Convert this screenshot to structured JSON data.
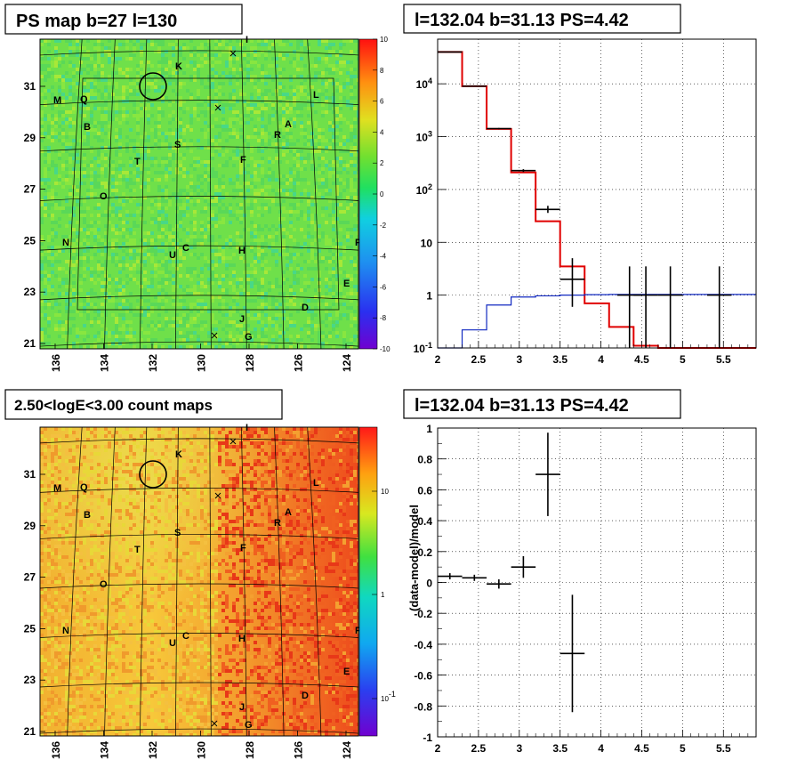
{
  "chart_data": [
    {
      "type": "heatmap",
      "title": "PS map b=27 l=130",
      "x_ticks": [
        "136",
        "134",
        "132",
        "130",
        "128",
        "126",
        "124"
      ],
      "y_ticks": [
        "31",
        "29",
        "27",
        "25",
        "23",
        "21"
      ],
      "colorbar": {
        "ticks": [
          "10",
          "8",
          "6",
          "4",
          "2",
          "0",
          "-2",
          "-4",
          "-6",
          "-8",
          "-10"
        ],
        "range": [
          -10,
          10
        ],
        "scale": "linear"
      },
      "background_value": 0.8,
      "source_labels": [
        "I",
        "K",
        "M",
        "Q",
        "L",
        "B",
        "A",
        "R",
        "S",
        "F",
        "T",
        "O",
        "N",
        "U",
        "C",
        "H",
        "P",
        "E",
        "D",
        "J",
        "G"
      ]
    },
    {
      "type": "line",
      "title": "l=132.04 b=31.13 PS=4.42",
      "x_ticks": [
        "2",
        "2.5",
        "3",
        "3.5",
        "4",
        "4.5",
        "5",
        "5.5"
      ],
      "y_ticks": [
        "10^4",
        "10^3",
        "10^2",
        "10",
        "1",
        "10^-1"
      ],
      "xlim": [
        2.0,
        5.9
      ],
      "ylim": [
        0.1,
        70000
      ],
      "y_scale": "log",
      "grid": true,
      "bin_edges": [
        2.0,
        2.3,
        2.6,
        2.9,
        3.2,
        3.5,
        3.8,
        4.1,
        4.4,
        4.7,
        5.0,
        5.3,
        5.6,
        5.9
      ],
      "series": [
        {
          "values": [
            40000,
            9000,
            1400,
            210,
            25,
            3.5,
            0.7,
            0.25,
            0.11,
            0.1,
            0.1,
            0.1,
            0.1
          ],
          "color": "#e00000"
        },
        {
          "values": [
            0.06,
            0.22,
            0.65,
            0.92,
            0.97,
            1.0,
            1.02,
            1.03,
            1.03,
            1.03,
            1.03,
            1.03,
            1.03
          ],
          "color": "#1028c0"
        }
      ],
      "data_points": [
        {
          "x": 2.15,
          "y": 40000,
          "xerr": 0.15,
          "ylo": 39800,
          "yhi": 40200
        },
        {
          "x": 2.45,
          "y": 9000,
          "xerr": 0.15,
          "ylo": 8900,
          "yhi": 9100
        },
        {
          "x": 2.75,
          "y": 1420,
          "xerr": 0.15,
          "ylo": 1380,
          "yhi": 1460
        },
        {
          "x": 3.05,
          "y": 228,
          "xerr": 0.15,
          "ylo": 214,
          "yhi": 242
        },
        {
          "x": 3.35,
          "y": 42,
          "xerr": 0.15,
          "ylo": 36,
          "yhi": 49
        },
        {
          "x": 3.65,
          "y": 2.0,
          "xerr": 0.15,
          "ylo": 0.6,
          "yhi": 5.0
        },
        {
          "x": 4.35,
          "y": 1.0,
          "xerr": 0.15,
          "ylo": 0.1,
          "yhi": 3.5
        },
        {
          "x": 4.55,
          "y": 1.0,
          "xerr": 0.15,
          "ylo": 0.1,
          "yhi": 3.5
        },
        {
          "x": 4.85,
          "y": 1.0,
          "xerr": 0.15,
          "ylo": 0.1,
          "yhi": 3.5
        },
        {
          "x": 5.45,
          "y": 1.0,
          "xerr": 0.15,
          "ylo": 0.1,
          "yhi": 3.5
        }
      ]
    },
    {
      "type": "heatmap",
      "title": "2.50<logE<3.00 count maps",
      "x_ticks": [
        "136",
        "134",
        "132",
        "130",
        "128",
        "126",
        "124"
      ],
      "y_ticks": [
        "31",
        "29",
        "27",
        "25",
        "23",
        "21"
      ],
      "colorbar": {
        "ticks": [
          "10",
          "1",
          "10^-1"
        ],
        "scale": "log"
      },
      "source_labels": [
        "I",
        "K",
        "M",
        "Q",
        "L",
        "B",
        "A",
        "R",
        "S",
        "F",
        "T",
        "O",
        "N",
        "U",
        "C",
        "H",
        "P",
        "E",
        "D",
        "J",
        "G"
      ]
    },
    {
      "type": "scatter",
      "title": "l=132.04 b=31.13 PS=4.42",
      "ylabel": "(data-model)/model",
      "x_ticks": [
        "2",
        "2.5",
        "3",
        "3.5",
        "4",
        "4.5",
        "5",
        "5.5"
      ],
      "y_ticks": [
        "1",
        "0.8",
        "0.6",
        "0.4",
        "0.2",
        "0",
        "-0.2",
        "-0.4",
        "-0.6",
        "-0.8",
        "-1"
      ],
      "xlim": [
        2.0,
        5.9
      ],
      "ylim": [
        -1,
        1
      ],
      "grid": true,
      "points": [
        {
          "x": 2.15,
          "y": 0.04,
          "xerr": 0.15,
          "yerr": 0.02
        },
        {
          "x": 2.45,
          "y": 0.03,
          "xerr": 0.15,
          "yerr": 0.02
        },
        {
          "x": 2.75,
          "y": -0.01,
          "xerr": 0.15,
          "yerr": 0.03
        },
        {
          "x": 3.05,
          "y": 0.1,
          "xerr": 0.15,
          "yerr": 0.07
        },
        {
          "x": 3.35,
          "y": 0.7,
          "xerr": 0.15,
          "yerr": 0.27
        },
        {
          "x": 3.65,
          "y": -0.46,
          "xerr": 0.15,
          "yerr": 0.38
        }
      ]
    }
  ]
}
